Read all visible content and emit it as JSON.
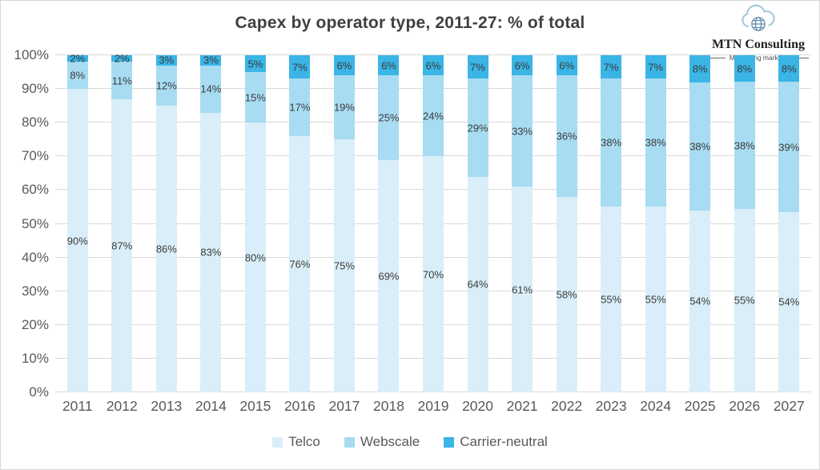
{
  "page": {
    "title": "Capex by operator type, 2011-27: % of total"
  },
  "logo": {
    "name": "MTN Consulting",
    "tagline": "Measuring markets"
  },
  "chart_data": {
    "type": "bar",
    "stacked": true,
    "title": "Capex by operator type, 2011-27: % of total",
    "xlabel": "",
    "ylabel": "",
    "ylim": [
      0,
      100
    ],
    "grid": true,
    "legend_position": "bottom",
    "value_suffix": "%",
    "yticks": [
      "0%",
      "10%",
      "20%",
      "30%",
      "40%",
      "50%",
      "60%",
      "70%",
      "80%",
      "90%",
      "100%"
    ],
    "categories": [
      "2011",
      "2012",
      "2013",
      "2014",
      "2015",
      "2016",
      "2017",
      "2018",
      "2019",
      "2020",
      "2021",
      "2022",
      "2023",
      "2024",
      "2025",
      "2026",
      "2027"
    ],
    "series": [
      {
        "name": "Telco",
        "color": "#D9EEF8",
        "values": [
          90,
          87,
          86,
          83,
          80,
          76,
          75,
          69,
          70,
          64,
          61,
          58,
          55,
          55,
          54,
          55,
          54
        ]
      },
      {
        "name": "Webscale",
        "color": "#A8DCF2",
        "values": [
          8,
          11,
          12,
          14,
          15,
          17,
          19,
          25,
          24,
          29,
          33,
          36,
          38,
          38,
          38,
          38,
          39
        ]
      },
      {
        "name": "Carrier-neutral",
        "color": "#3AB5E6",
        "values": [
          2,
          2,
          3,
          3,
          5,
          7,
          6,
          6,
          6,
          7,
          6,
          6,
          7,
          7,
          8,
          8,
          8
        ]
      }
    ],
    "colors": {
      "gridline": "#d9d9d9",
      "axis_text": "#595959",
      "data_label": "#3b3b3b",
      "title_text": "#404040"
    }
  }
}
